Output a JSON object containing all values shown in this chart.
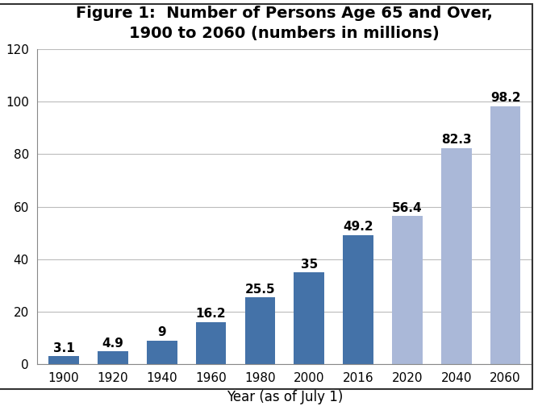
{
  "categories": [
    "1900",
    "1920",
    "1940",
    "1960",
    "1980",
    "2000",
    "2016",
    "2020",
    "2040",
    "2060"
  ],
  "values": [
    3.1,
    4.9,
    9,
    16.2,
    25.5,
    35,
    49.2,
    56.4,
    82.3,
    98.2
  ],
  "bar_colors": [
    "#4472a8",
    "#4472a8",
    "#4472a8",
    "#4472a8",
    "#4472a8",
    "#4472a8",
    "#4472a8",
    "#aab8d8",
    "#aab8d8",
    "#aab8d8"
  ],
  "title_line1": "Figure 1:  Number of Persons Age 65 and Over,",
  "title_line2": "1900 to 2060 (numbers in millions)",
  "xlabel": "Year (as of July 1)",
  "ylim": [
    0,
    120
  ],
  "yticks": [
    0,
    20,
    40,
    60,
    80,
    100,
    120
  ],
  "title_fontsize": 14,
  "tick_fontsize": 11,
  "bar_label_fontsize": 11,
  "xlabel_fontsize": 12,
  "background_color": "#ffffff",
  "grid_color": "#bbbbbb",
  "border_color": "#333333",
  "bar_width": 0.62
}
